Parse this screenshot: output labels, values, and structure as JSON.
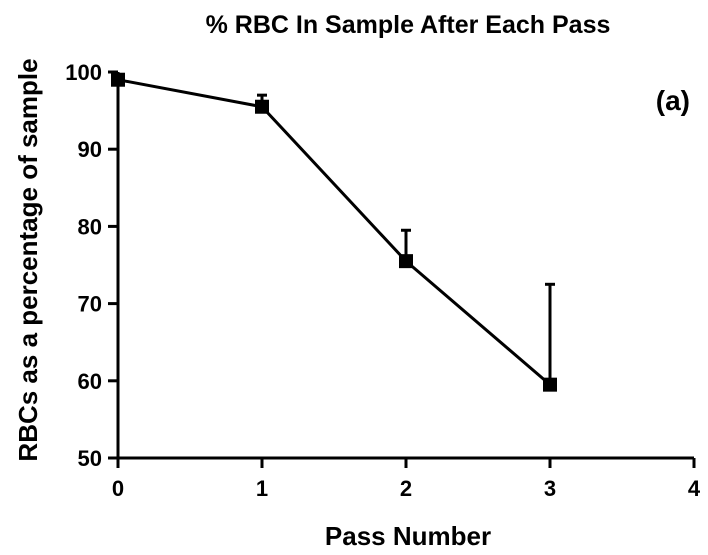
{
  "chart_data": {
    "type": "line",
    "title": "% RBC In Sample After Each Pass",
    "xlabel": "Pass Number",
    "ylabel": "RBCs as a percentage of sample",
    "xlim": [
      0,
      4
    ],
    "ylim": [
      50,
      100
    ],
    "x_ticks": [
      0,
      1,
      2,
      3,
      4
    ],
    "y_ticks": [
      50,
      60,
      70,
      80,
      90,
      100
    ],
    "grid": false,
    "annotation": "(a)",
    "series": [
      {
        "x": [
          0,
          1,
          2,
          3
        ],
        "values": [
          99,
          95.5,
          75.5,
          59.5
        ],
        "error_upper": [
          0.3,
          1.5,
          4.0,
          13.0
        ],
        "marker": "square",
        "color": "#000000"
      }
    ]
  }
}
